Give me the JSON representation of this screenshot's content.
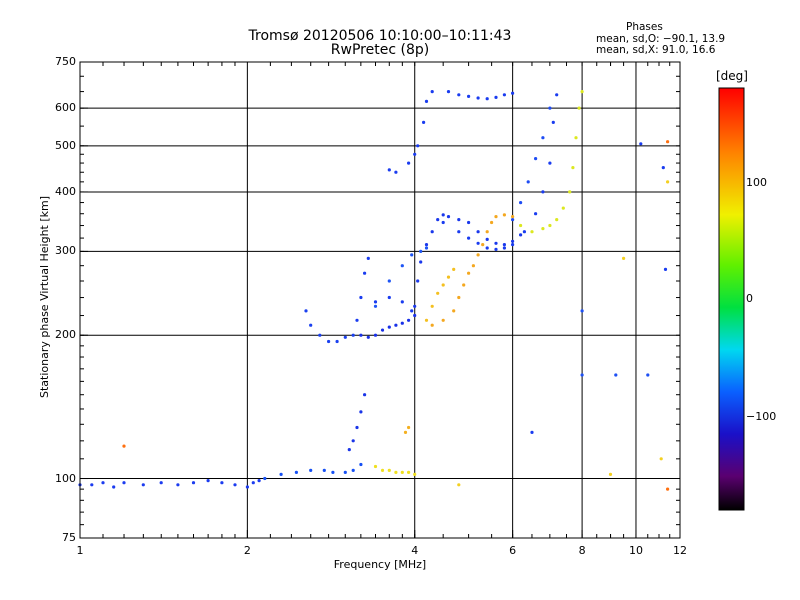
{
  "header": {
    "title_line1": "Tromsø 20120506 10:10:00–10:11:43",
    "title_line2": "RwPretec (8p)"
  },
  "phase_stats": {
    "title": "Phases",
    "line_o": "mean, sd,O: −90.1, 13.9",
    "line_x": "mean, sd,X:  91.0, 16.6"
  },
  "colorbar": {
    "unit_label": "[deg]",
    "range": [
      -180,
      180
    ],
    "ticks": [
      {
        "value": 100,
        "label": "100"
      },
      {
        "value": 0,
        "label": "0"
      },
      {
        "value": -100,
        "label": "−100"
      }
    ]
  },
  "chart_data": {
    "type": "scatter",
    "title": "Tromsø 20120506 10:10:00–10:11:43",
    "subtitle": "RwPretec (8p)",
    "xlabel": "Frequency [MHz]",
    "ylabel": "Stationary phase Virtual Height [km]",
    "x_scale": "log",
    "y_scale": "log",
    "xlim": [
      1,
      12
    ],
    "ylim": [
      75,
      750
    ],
    "x_ticks": [
      1,
      2,
      4,
      6,
      8,
      10,
      12
    ],
    "x_tick_labels": [
      "1",
      "2",
      "4",
      "6",
      "8",
      "10",
      "12"
    ],
    "y_ticks": [
      75,
      100,
      200,
      300,
      400,
      500,
      600,
      750
    ],
    "y_tick_labels": [
      "75",
      "100",
      "200",
      "300",
      "400",
      "500",
      "600",
      "750"
    ],
    "grid": true,
    "color_dimension": "phase [deg]",
    "series": [
      {
        "color": "#1c3cf0",
        "points": [
          [
            1.0,
            97
          ],
          [
            1.05,
            97
          ],
          [
            1.1,
            98
          ],
          [
            1.15,
            96
          ],
          [
            1.2,
            98
          ],
          [
            1.3,
            97
          ],
          [
            1.4,
            98
          ],
          [
            1.5,
            97
          ],
          [
            1.6,
            98
          ],
          [
            1.7,
            99
          ],
          [
            1.8,
            98
          ],
          [
            1.9,
            97
          ],
          [
            2.0,
            96
          ],
          [
            2.05,
            98
          ],
          [
            2.1,
            99
          ]
        ]
      },
      {
        "color": "#1550f5",
        "points": [
          [
            2.15,
            100
          ],
          [
            2.3,
            102
          ],
          [
            2.45,
            103
          ],
          [
            2.6,
            104
          ],
          [
            2.75,
            104
          ],
          [
            2.85,
            103
          ],
          [
            3.0,
            103
          ],
          [
            3.1,
            104
          ],
          [
            3.2,
            107
          ]
        ]
      },
      {
        "color": "#1a35e8",
        "points": [
          [
            3.05,
            115
          ],
          [
            3.1,
            120
          ],
          [
            3.15,
            128
          ],
          [
            3.2,
            138
          ],
          [
            3.25,
            150
          ]
        ]
      },
      {
        "color": "#f0e020",
        "points": [
          [
            3.4,
            106
          ],
          [
            3.5,
            104
          ],
          [
            3.6,
            104
          ],
          [
            3.7,
            103
          ],
          [
            3.8,
            103
          ],
          [
            3.9,
            103
          ],
          [
            4.0,
            102
          ]
        ]
      },
      {
        "color": "#f4b020",
        "points": [
          [
            3.85,
            125
          ],
          [
            3.9,
            128
          ]
        ]
      },
      {
        "color": "#1a40f0",
        "points": [
          [
            2.55,
            225
          ],
          [
            2.6,
            210
          ],
          [
            2.7,
            200
          ],
          [
            2.8,
            194
          ],
          [
            2.9,
            194
          ],
          [
            3.0,
            198
          ],
          [
            3.1,
            200
          ]
        ]
      },
      {
        "color": "#1830e8",
        "points": [
          [
            3.2,
            200
          ],
          [
            3.3,
            198
          ],
          [
            3.4,
            200
          ],
          [
            3.5,
            205
          ],
          [
            3.6,
            208
          ],
          [
            3.7,
            210
          ],
          [
            3.8,
            212
          ],
          [
            3.9,
            215
          ],
          [
            4.0,
            220
          ]
        ]
      },
      {
        "color": "#1a3cf0",
        "points": [
          [
            3.15,
            215
          ],
          [
            3.2,
            240
          ],
          [
            3.25,
            270
          ],
          [
            3.3,
            290
          ],
          [
            3.4,
            235
          ],
          [
            3.6,
            240
          ],
          [
            3.8,
            235
          ],
          [
            3.95,
            225
          ]
        ]
      },
      {
        "color": "#1e55f5",
        "points": [
          [
            3.4,
            230
          ],
          [
            3.6,
            260
          ],
          [
            3.8,
            280
          ],
          [
            3.95,
            295
          ],
          [
            4.1,
            300
          ],
          [
            4.2,
            305
          ]
        ]
      },
      {
        "color": "#1a38ec",
        "points": [
          [
            4.0,
            230
          ],
          [
            4.05,
            260
          ],
          [
            4.1,
            285
          ],
          [
            4.2,
            310
          ],
          [
            4.3,
            330
          ],
          [
            4.4,
            350
          ],
          [
            4.5,
            358
          ],
          [
            4.6,
            355
          ],
          [
            4.8,
            350
          ],
          [
            5.0,
            345
          ],
          [
            5.2,
            330
          ],
          [
            5.4,
            318
          ],
          [
            5.6,
            312
          ],
          [
            5.8,
            310
          ],
          [
            6.0,
            315
          ],
          [
            6.2,
            325
          ]
        ]
      },
      {
        "color": "#1a3cf0",
        "points": [
          [
            4.5,
            345
          ],
          [
            4.8,
            330
          ],
          [
            5.0,
            320
          ],
          [
            5.2,
            312
          ],
          [
            5.4,
            305
          ],
          [
            5.6,
            303
          ],
          [
            5.8,
            305
          ],
          [
            6.0,
            310
          ],
          [
            6.3,
            330
          ],
          [
            6.6,
            360
          ],
          [
            6.8,
            400
          ],
          [
            7.0,
            460
          ],
          [
            7.1,
            560
          ],
          [
            7.2,
            640
          ]
        ]
      },
      {
        "color": "#1e4cf4",
        "points": [
          [
            6.0,
            350
          ],
          [
            6.2,
            380
          ],
          [
            6.4,
            420
          ],
          [
            6.6,
            470
          ],
          [
            6.8,
            520
          ],
          [
            7.0,
            600
          ]
        ]
      },
      {
        "color": "#f4c020",
        "points": [
          [
            4.2,
            215
          ],
          [
            4.3,
            230
          ],
          [
            4.4,
            245
          ],
          [
            4.5,
            255
          ],
          [
            4.6,
            265
          ],
          [
            4.7,
            275
          ]
        ]
      },
      {
        "color": "#f4a820",
        "points": [
          [
            4.3,
            210
          ],
          [
            4.5,
            215
          ],
          [
            4.7,
            225
          ],
          [
            4.8,
            240
          ],
          [
            4.9,
            255
          ],
          [
            5.0,
            270
          ],
          [
            5.1,
            280
          ],
          [
            5.2,
            295
          ],
          [
            5.3,
            310
          ],
          [
            5.4,
            330
          ],
          [
            5.5,
            345
          ],
          [
            5.6,
            355
          ],
          [
            5.8,
            358
          ],
          [
            6.0,
            355
          ]
        ]
      },
      {
        "color": "#dce820",
        "points": [
          [
            6.2,
            340
          ],
          [
            6.5,
            330
          ],
          [
            6.8,
            335
          ],
          [
            7.0,
            340
          ],
          [
            7.2,
            350
          ],
          [
            7.4,
            370
          ],
          [
            7.6,
            400
          ],
          [
            7.7,
            450
          ],
          [
            7.8,
            520
          ],
          [
            7.9,
            600
          ],
          [
            8.0,
            650
          ]
        ]
      },
      {
        "color": "#1a3cf0",
        "points": [
          [
            4.6,
            650
          ],
          [
            4.8,
            640
          ],
          [
            5.0,
            635
          ],
          [
            5.2,
            630
          ],
          [
            5.4,
            628
          ],
          [
            5.6,
            632
          ],
          [
            5.8,
            640
          ],
          [
            6.0,
            645
          ]
        ]
      },
      {
        "color": "#1a3cf0",
        "points": [
          [
            3.6,
            445
          ],
          [
            3.7,
            440
          ],
          [
            3.9,
            460
          ],
          [
            4.0,
            480
          ],
          [
            4.05,
            500
          ],
          [
            4.15,
            560
          ],
          [
            4.2,
            620
          ],
          [
            4.3,
            650
          ]
        ]
      },
      {
        "color": "#1e50f4",
        "points": [
          [
            8.0,
            225
          ],
          [
            8.0,
            165
          ],
          [
            9.2,
            165
          ],
          [
            10.5,
            165
          ]
        ]
      },
      {
        "color": "#ff7010",
        "points": [
          [
            11.4,
            510
          ],
          [
            11.4,
            95
          ],
          [
            1.2,
            117
          ]
        ]
      },
      {
        "color": "#f4d020",
        "points": [
          [
            11.1,
            110
          ],
          [
            11.4,
            420
          ],
          [
            9.5,
            290
          ],
          [
            9.0,
            102
          ],
          [
            4.8,
            97
          ]
        ]
      },
      {
        "color": "#1a3cf0",
        "points": [
          [
            11.3,
            275
          ],
          [
            11.2,
            450
          ],
          [
            10.2,
            505
          ],
          [
            6.5,
            125
          ]
        ]
      }
    ]
  }
}
